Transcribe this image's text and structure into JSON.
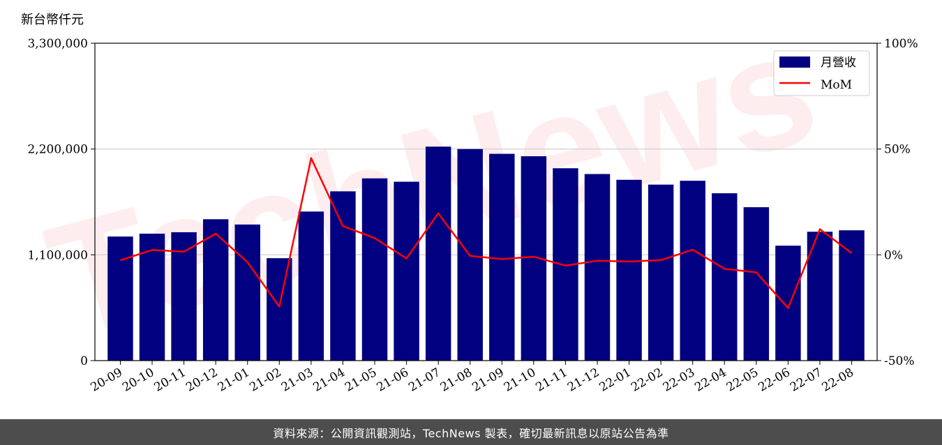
{
  "unit_label": "新台幣仟元",
  "footer_text": "資料來源：公開資訊觀測站，TechNews 製表，確切最新訊息以原站公告為準",
  "watermark": "TechNews",
  "colors": {
    "bar": "#000080",
    "line": "#ff0000",
    "grid": "#cccccc"
  },
  "chart_data": {
    "type": "bar",
    "categories": [
      "20-09",
      "20-10",
      "20-11",
      "20-12",
      "21-01",
      "21-02",
      "21-03",
      "21-04",
      "21-05",
      "21-06",
      "21-07",
      "21-08",
      "21-09",
      "21-10",
      "21-11",
      "21-12",
      "22-01",
      "22-02",
      "22-03",
      "22-04",
      "22-05",
      "22-06",
      "22-07",
      "22-08"
    ],
    "series": [
      {
        "name": "月營收",
        "type": "bar",
        "axis": "left",
        "values": [
          1290000,
          1320000,
          1335000,
          1470000,
          1415000,
          1065000,
          1550000,
          1760000,
          1895000,
          1860000,
          2225000,
          2200000,
          2150000,
          2125000,
          2000000,
          1940000,
          1880000,
          1830000,
          1870000,
          1740000,
          1595000,
          1195000,
          1340000,
          1355000
        ]
      },
      {
        "name": "MoM",
        "type": "line",
        "axis": "right",
        "values": [
          -2.6,
          2.3,
          1.5,
          10.0,
          -3.5,
          -24.5,
          45.7,
          13.6,
          7.9,
          -1.7,
          19.6,
          -0.5,
          -2.0,
          -0.9,
          -5.1,
          -2.8,
          -3.2,
          -2.5,
          2.4,
          -6.6,
          -8.3,
          -25.1,
          12.1,
          0.8
        ]
      }
    ],
    "y_left": {
      "ylim": [
        0,
        3300000
      ],
      "ticks": [
        0,
        1100000,
        2200000,
        3300000
      ],
      "tick_labels": [
        "0",
        "1,100,000",
        "2,200,000",
        "3,300,000"
      ]
    },
    "y_right": {
      "ylim": [
        -50,
        100
      ],
      "ticks": [
        -50,
        0,
        50,
        100
      ],
      "tick_labels": [
        "-50%",
        "0%",
        "50%",
        "100%"
      ]
    },
    "grid": true,
    "legend": {
      "position": "top-right",
      "entries": [
        "月營收",
        "MoM"
      ]
    }
  }
}
